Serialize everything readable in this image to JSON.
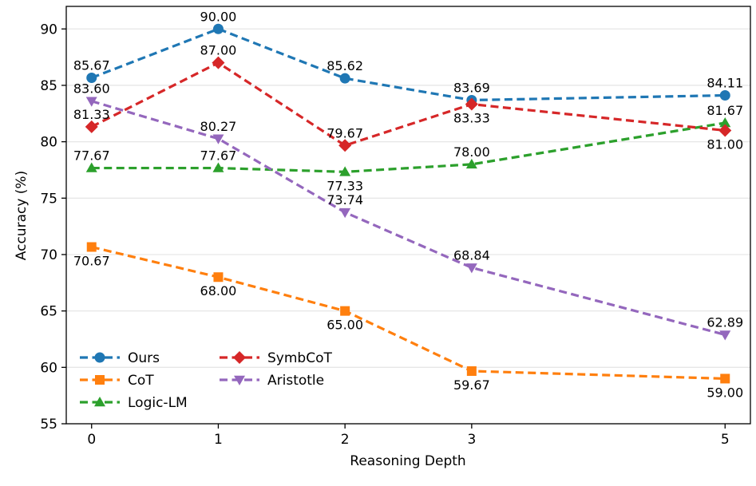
{
  "chart_data": {
    "type": "line",
    "title": "",
    "xlabel": "Reasoning Depth",
    "ylabel": "Accuracy (%)",
    "x": [
      0,
      1,
      2,
      3,
      5
    ],
    "xticks": [
      "0",
      "1",
      "2",
      "3",
      "5"
    ],
    "xlim": [
      -0.2,
      5.2
    ],
    "ylim": [
      55,
      92
    ],
    "yticks": [
      "55",
      "60",
      "65",
      "70",
      "75",
      "80",
      "85",
      "90"
    ],
    "grid": "horizontal",
    "legend_position": "lower-left",
    "series": [
      {
        "name": "Ours",
        "color": "#1f77b4",
        "marker": "circle",
        "values": [
          85.67,
          90.0,
          85.62,
          83.69,
          84.11
        ],
        "labels": [
          "85.67",
          "90.00",
          "85.62",
          "83.69",
          "84.11"
        ]
      },
      {
        "name": "CoT",
        "color": "#ff7f0e",
        "marker": "square",
        "values": [
          70.67,
          68.0,
          65.0,
          59.67,
          59.0
        ],
        "labels": [
          "70.67",
          "68.00",
          "65.00",
          "59.67",
          "59.00"
        ]
      },
      {
        "name": "Logic-LM",
        "color": "#2ca02c",
        "marker": "triangle-up",
        "values": [
          77.67,
          77.67,
          77.33,
          78.0,
          81.67
        ],
        "labels": [
          "77.67",
          "77.67",
          "77.33",
          "78.00",
          "81.67"
        ]
      },
      {
        "name": "SymbCoT",
        "color": "#d62728",
        "marker": "diamond",
        "values": [
          81.33,
          87.0,
          79.67,
          83.33,
          81.0
        ],
        "labels": [
          "81.33",
          "87.00",
          "79.67",
          "83.33",
          "81.00"
        ]
      },
      {
        "name": "Aristotle",
        "color": "#9467bd",
        "marker": "triangle-down",
        "values": [
          83.6,
          80.27,
          73.74,
          68.84,
          62.89
        ],
        "labels": [
          "83.60",
          "80.27",
          "73.74",
          "68.84",
          "62.89"
        ]
      }
    ]
  }
}
